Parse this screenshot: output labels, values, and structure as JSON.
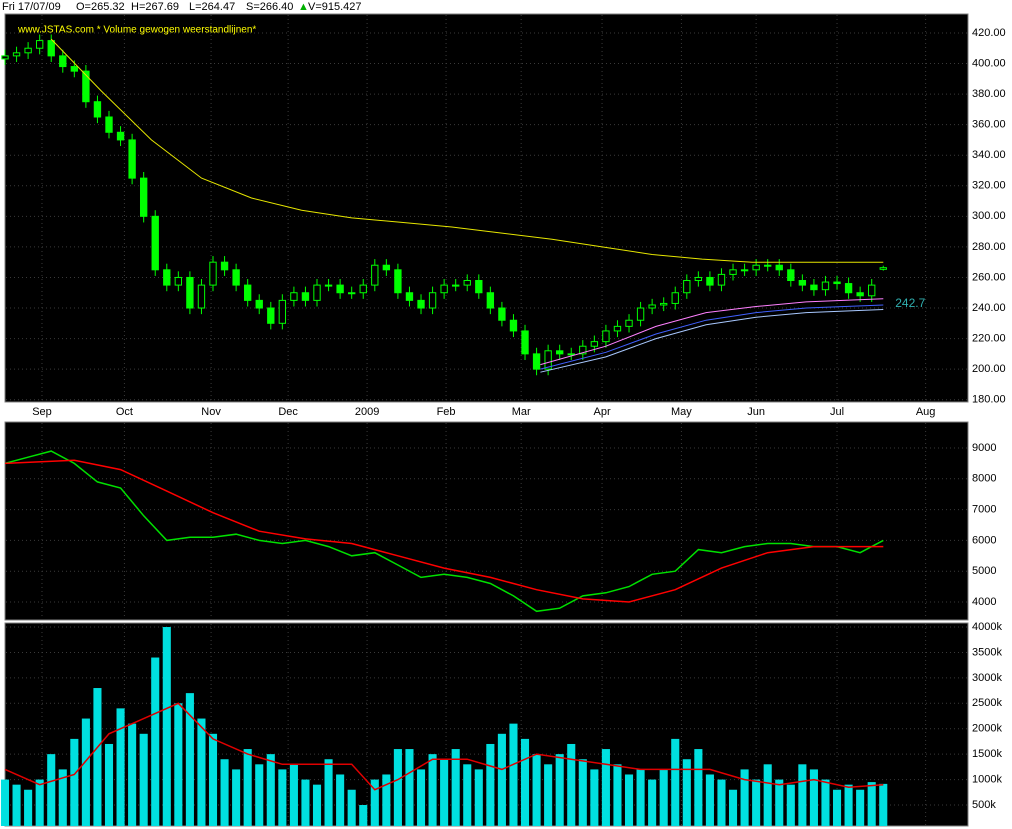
{
  "header": [
    "Fri 17/07/09",
    "O=265.32",
    "H=267.69",
    "L=264.47",
    "S=266.40",
    "▲",
    "V=915.427"
  ],
  "chart_data": [
    {
      "type": "candlestick",
      "subtitle": "www.JSTAS.com * Volume gewogen weerstandlijnen*",
      "color": "#00ff00",
      "grid": true,
      "xlim": [
        0,
        250
      ],
      "ylim": [
        178.5,
        432.4
      ],
      "xticks": [
        {
          "value": 9.6,
          "label": "Sep"
        },
        {
          "value": 31,
          "label": "Oct"
        },
        {
          "value": 53.5,
          "label": "Nov"
        },
        {
          "value": 73.5,
          "label": "Dec"
        },
        {
          "value": 94,
          "label": "2009"
        },
        {
          "value": 114.5,
          "label": "Feb"
        },
        {
          "value": 134,
          "label": "Mar"
        },
        {
          "value": 155,
          "label": "Apr"
        },
        {
          "value": 175.6,
          "label": "May"
        },
        {
          "value": 195,
          "label": "Jun"
        },
        {
          "value": 216,
          "label": "Jul"
        },
        {
          "value": 239,
          "label": "Aug"
        }
      ],
      "yticks": [
        {
          "value": 180,
          "label": "180.00"
        },
        {
          "value": 200,
          "label": "200.00"
        },
        {
          "value": 220,
          "label": "220.00"
        },
        {
          "value": 240,
          "label": "240.00"
        },
        {
          "value": 260,
          "label": "260.00"
        },
        {
          "value": 280,
          "label": "280.00"
        },
        {
          "value": 300,
          "label": "300.00"
        },
        {
          "value": 320,
          "label": "320.00"
        },
        {
          "value": 340,
          "label": "340.00"
        },
        {
          "value": 360,
          "label": "360.00"
        },
        {
          "value": 380,
          "label": "380.00"
        },
        {
          "value": 400,
          "label": "400.00"
        },
        {
          "value": 420,
          "label": "420.00"
        }
      ],
      "x": [
        0,
        3,
        6,
        9,
        12,
        15,
        18,
        21,
        24,
        27,
        30,
        33,
        36,
        39,
        42,
        45,
        48,
        51,
        54,
        57,
        60,
        63,
        66,
        69,
        72,
        75,
        78,
        81,
        84,
        87,
        90,
        93,
        96,
        99,
        102,
        105,
        108,
        111,
        114,
        117,
        120,
        123,
        126,
        129,
        132,
        135,
        138,
        141,
        144,
        147,
        150,
        153,
        156,
        159,
        162,
        165,
        168,
        171,
        174,
        177,
        180,
        183,
        186,
        189,
        192,
        195,
        198,
        201,
        204,
        207,
        210,
        213,
        216,
        219,
        222,
        225,
        228
      ],
      "open": [
        403,
        405,
        407,
        410,
        415,
        405,
        398,
        395,
        375,
        365,
        355,
        350,
        325,
        300,
        265,
        255,
        260,
        240,
        255,
        270,
        265,
        255,
        245,
        240,
        230,
        245,
        250,
        245,
        255,
        255,
        250,
        250,
        255,
        268,
        265,
        250,
        245,
        240,
        250,
        255,
        255,
        258,
        250,
        240,
        232,
        225,
        210,
        200,
        212,
        210,
        210,
        215,
        218,
        225,
        228,
        232,
        240,
        242,
        243,
        250,
        258,
        260,
        255,
        262,
        265,
        265,
        268,
        268,
        265,
        258,
        255,
        252,
        257,
        256,
        250,
        248,
        265.32
      ],
      "high": [
        409,
        411,
        414,
        419,
        419,
        409,
        402,
        399,
        379,
        369,
        359,
        354,
        329,
        304,
        269,
        264,
        264,
        259,
        274,
        274,
        269,
        259,
        249,
        244,
        249,
        254,
        254,
        259,
        259,
        259,
        254,
        259,
        272,
        272,
        269,
        254,
        249,
        254,
        259,
        259,
        262,
        262,
        254,
        244,
        236,
        229,
        214,
        216,
        216,
        214,
        219,
        222,
        229,
        232,
        236,
        244,
        246,
        247,
        254,
        262,
        264,
        264,
        266,
        269,
        269,
        272,
        272,
        272,
        269,
        262,
        259,
        261,
        261,
        260,
        254,
        259,
        267.69
      ],
      "low": [
        399,
        401,
        403,
        406,
        401,
        394,
        391,
        371,
        361,
        351,
        346,
        321,
        296,
        261,
        251,
        251,
        236,
        236,
        251,
        261,
        251,
        241,
        236,
        226,
        226,
        241,
        241,
        241,
        251,
        246,
        246,
        246,
        251,
        261,
        246,
        241,
        236,
        236,
        246,
        251,
        251,
        246,
        236,
        228,
        221,
        206,
        196,
        196,
        206,
        206,
        206,
        211,
        214,
        221,
        224,
        228,
        236,
        238,
        239,
        246,
        254,
        251,
        251,
        258,
        261,
        261,
        264,
        261,
        254,
        251,
        248,
        248,
        252,
        246,
        244,
        244,
        264.47
      ],
      "close": [
        405,
        407,
        410,
        415,
        405,
        398,
        395,
        375,
        365,
        355,
        350,
        325,
        300,
        265,
        255,
        260,
        240,
        255,
        270,
        265,
        255,
        245,
        240,
        230,
        245,
        250,
        245,
        255,
        255,
        250,
        250,
        255,
        268,
        265,
        250,
        245,
        240,
        250,
        255,
        255,
        258,
        250,
        240,
        232,
        225,
        210,
        200,
        212,
        210,
        210,
        215,
        218,
        225,
        228,
        232,
        240,
        242,
        243,
        250,
        258,
        260,
        255,
        262,
        265,
        265,
        268,
        268,
        265,
        258,
        255,
        252,
        257,
        256,
        250,
        248,
        255,
        266.4
      ],
      "lines": [
        {
          "color": "#e6e600",
          "x": [
            12,
            25,
            38,
            51,
            64,
            77,
            90,
            103,
            116,
            129,
            142,
            155,
            168,
            181,
            194,
            207,
            228
          ],
          "values": [
            416,
            382,
            350,
            325,
            312,
            304,
            299,
            296,
            293,
            289,
            285,
            280,
            275,
            272,
            270,
            270,
            270
          ]
        },
        {
          "color": "#ff80ff",
          "x": [
            139,
            156,
            169,
            182,
            195,
            208,
            228
          ],
          "values": [
            203,
            215,
            228,
            237,
            241,
            244,
            246
          ]
        },
        {
          "color": "#4060ff",
          "x": [
            139,
            156,
            169,
            182,
            195,
            208,
            228
          ],
          "values": [
            200,
            211,
            223,
            232,
            237,
            240,
            242
          ]
        },
        {
          "color": "#a8c8ff",
          "x": [
            139,
            156,
            169,
            182,
            195,
            208,
            228
          ],
          "values": [
            198,
            208,
            220,
            229,
            234,
            237,
            239
          ]
        }
      ],
      "annotations": [
        {
          "value": 242.7,
          "label": "242.7",
          "color": "#30b0b0"
        }
      ]
    },
    {
      "type": "line",
      "grid": true,
      "xlim": [
        0,
        250
      ],
      "ylim": [
        3416,
        9844
      ],
      "yticks": [
        4000,
        5000,
        6000,
        7000,
        8000,
        9000
      ],
      "lines": [
        {
          "color": "#00e000",
          "x": [
            0,
            6,
            12,
            18,
            24,
            30,
            36,
            42,
            48,
            54,
            60,
            66,
            72,
            78,
            84,
            90,
            96,
            102,
            108,
            114,
            120,
            126,
            132,
            138,
            144,
            150,
            156,
            162,
            168,
            174,
            180,
            186,
            192,
            198,
            204,
            210,
            216,
            222,
            228
          ],
          "values": [
            8500,
            8700,
            8900,
            8500,
            7900,
            7700,
            6800,
            6000,
            6100,
            6100,
            6200,
            6000,
            5900,
            6000,
            5800,
            5500,
            5600,
            5200,
            4800,
            4900,
            4800,
            4600,
            4200,
            3700,
            3800,
            4200,
            4300,
            4500,
            4900,
            5000,
            5700,
            5600,
            5800,
            5900,
            5900,
            5800,
            5800,
            5600,
            6000
          ]
        },
        {
          "color": "#ff0000",
          "x": [
            0,
            18,
            30,
            42,
            54,
            66,
            78,
            90,
            102,
            114,
            126,
            138,
            150,
            162,
            174,
            186,
            198,
            210,
            228
          ],
          "values": [
            8500,
            8600,
            8300,
            7600,
            6900,
            6300,
            6050,
            5900,
            5500,
            5100,
            4800,
            4400,
            4100,
            4000,
            4400,
            5100,
            5600,
            5800,
            5800
          ]
        }
      ]
    },
    {
      "type": "bar",
      "color": "#00e0e0",
      "grid": true,
      "xlim": [
        0,
        250
      ],
      "ylim": [
        87000,
        4079000
      ],
      "yticks": [
        {
          "value": 500000,
          "label": "500k"
        },
        {
          "value": 1000000,
          "label": "1000k"
        },
        {
          "value": 1500000,
          "label": "1500k"
        },
        {
          "value": 2000000,
          "label": "2000k"
        },
        {
          "value": 2500000,
          "label": "2500k"
        },
        {
          "value": 3000000,
          "label": "3000k"
        },
        {
          "value": 3500000,
          "label": "3500k"
        },
        {
          "value": 4000000,
          "label": "4000k"
        }
      ],
      "x": [
        0,
        3,
        6,
        9,
        12,
        15,
        18,
        21,
        24,
        27,
        30,
        33,
        36,
        39,
        42,
        45,
        48,
        51,
        54,
        57,
        60,
        63,
        66,
        69,
        72,
        75,
        78,
        81,
        84,
        87,
        90,
        93,
        96,
        99,
        102,
        105,
        108,
        111,
        114,
        117,
        120,
        123,
        126,
        129,
        132,
        135,
        138,
        141,
        144,
        147,
        150,
        153,
        156,
        159,
        162,
        165,
        168,
        171,
        174,
        177,
        180,
        183,
        186,
        189,
        192,
        195,
        198,
        201,
        204,
        207,
        210,
        213,
        216,
        219,
        222,
        225,
        228
      ],
      "values": [
        1000000,
        900000,
        800000,
        1000000,
        1500000,
        1200000,
        1800000,
        2200000,
        2800000,
        1700000,
        2400000,
        2100000,
        1900000,
        3400000,
        4000000,
        2500000,
        2700000,
        2200000,
        1900000,
        1400000,
        1200000,
        1600000,
        1300000,
        1500000,
        1200000,
        1300000,
        1000000,
        900000,
        1400000,
        1100000,
        800000,
        500000,
        1000000,
        1100000,
        1600000,
        1600000,
        1200000,
        1500000,
        1400000,
        1600000,
        1300000,
        1200000,
        1700000,
        1900000,
        2100000,
        1800000,
        1500000,
        1300000,
        1500000,
        1700000,
        1400000,
        1200000,
        1600000,
        1300000,
        1100000,
        1200000,
        1000000,
        1200000,
        1800000,
        1400000,
        1600000,
        1100000,
        1000000,
        800000,
        1200000,
        1000000,
        1300000,
        1000000,
        900000,
        1300000,
        1200000,
        1000000,
        800000,
        900000,
        800000,
        950000,
        915427
      ],
      "lines": [
        {
          "color": "#e00000",
          "x": [
            0,
            9,
            18,
            27,
            36,
            45,
            54,
            63,
            72,
            81,
            90,
            96,
            102,
            111,
            120,
            129,
            138,
            147,
            156,
            165,
            174,
            183,
            192,
            201,
            210,
            219,
            228
          ],
          "values": [
            1200000,
            900000,
            1100000,
            1900000,
            2200000,
            2500000,
            1800000,
            1500000,
            1300000,
            1300000,
            1300000,
            800000,
            1000000,
            1400000,
            1400000,
            1200000,
            1500000,
            1400000,
            1300000,
            1200000,
            1200000,
            1200000,
            1000000,
            900000,
            1000000,
            850000,
            900000
          ]
        }
      ]
    }
  ]
}
